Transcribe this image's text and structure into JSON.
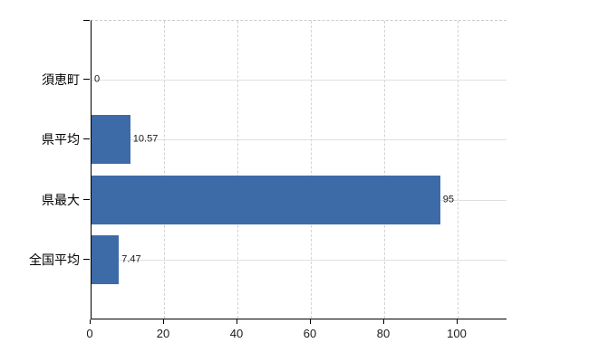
{
  "chart_data": {
    "type": "bar",
    "orientation": "horizontal",
    "title": "",
    "categories": [
      "須恵町",
      "県平均",
      "県最大",
      "全国平均"
    ],
    "values": [
      0,
      10.57,
      95,
      7.47
    ],
    "value_labels": [
      "0",
      "10.57",
      "95",
      "7.47"
    ],
    "x_tick_values": [
      0,
      20,
      40,
      60,
      80,
      100
    ],
    "x_tick_labels": [
      "0",
      "20",
      "40",
      "60",
      "80",
      "100"
    ],
    "xlim": [
      0,
      113.33
    ],
    "grid": "on",
    "legend": "none",
    "bar_color": "#3d6ba8",
    "axis_color": "#000000",
    "vertical_gridline_color": "#d3d3d3",
    "horizontal_gridline_color": "#dde1dd",
    "top_border_color": "#c9c9c9",
    "background_color": "#ffffff",
    "text_color": "#1a1a1a"
  }
}
